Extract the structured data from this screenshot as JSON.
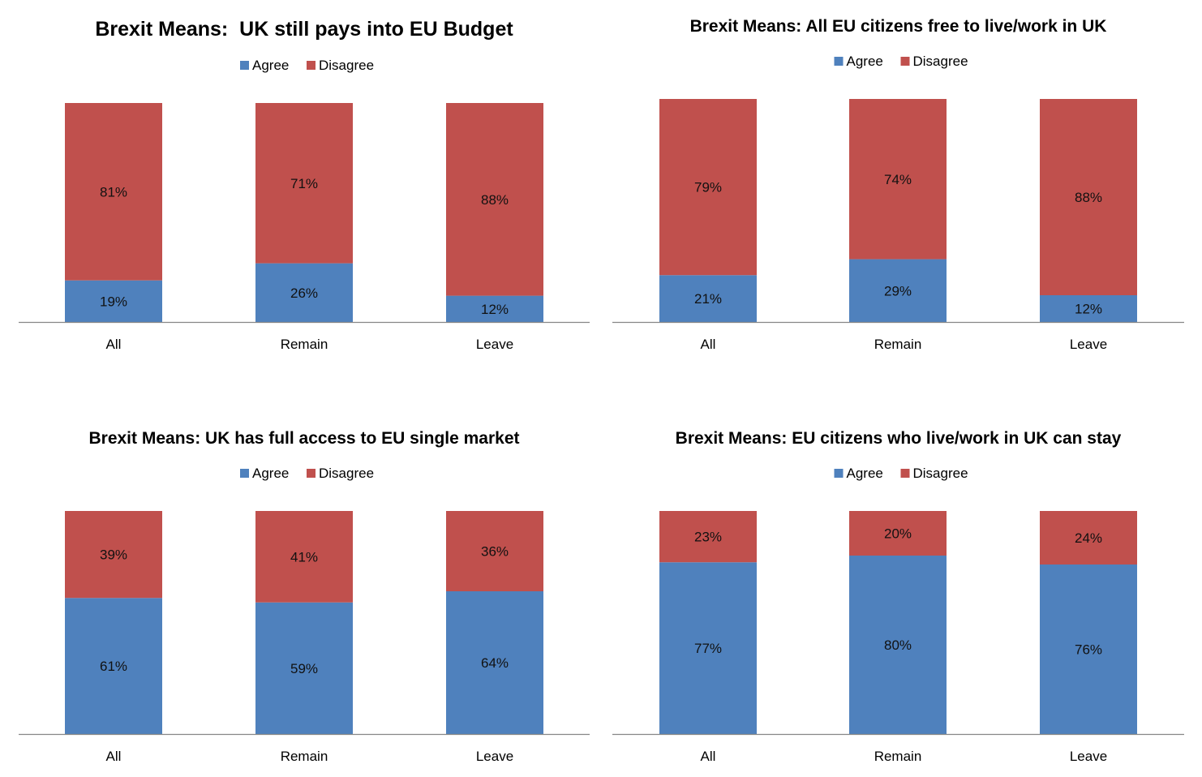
{
  "colors": {
    "agree": "#4F81BD",
    "disagree": "#C0504D",
    "axis": "#878787"
  },
  "chart_data": [
    {
      "type": "bar",
      "stacked": true,
      "title": "Brexit Means:  UK still pays into EU Budget",
      "categories": [
        "All",
        "Remain",
        "Leave"
      ],
      "series": [
        {
          "name": "Agree",
          "values": [
            19,
            26,
            12
          ],
          "labels": [
            "19%",
            "26%",
            "12%"
          ]
        },
        {
          "name": "Disagree",
          "values": [
            81,
            71,
            88
          ],
          "labels": [
            "81%",
            "71%",
            "88%"
          ]
        }
      ],
      "legend": {
        "entries": [
          "Agree",
          "Disagree"
        ],
        "placement": "top"
      },
      "xlabel": "",
      "ylabel": "",
      "ylim": [
        0,
        100
      ],
      "grid": false
    },
    {
      "type": "bar",
      "stacked": true,
      "title": "Brexit Means: All EU citizens free to live/work in UK",
      "categories": [
        "All",
        "Remain",
        "Leave"
      ],
      "series": [
        {
          "name": "Agree",
          "values": [
            21,
            29,
            12
          ],
          "labels": [
            "21%",
            "29%",
            "12%"
          ]
        },
        {
          "name": "Disagree",
          "values": [
            79,
            74,
            88
          ],
          "labels": [
            "79%",
            "74%",
            "88%"
          ]
        }
      ],
      "legend": {
        "entries": [
          "Agree",
          "Disagree"
        ],
        "placement": "top"
      },
      "xlabel": "",
      "ylabel": "",
      "ylim": [
        0,
        100
      ],
      "grid": false
    },
    {
      "type": "bar",
      "stacked": true,
      "title": "Brexit Means: UK has full access to EU single market",
      "categories": [
        "All",
        "Remain",
        "Leave"
      ],
      "series": [
        {
          "name": "Agree",
          "values": [
            61,
            59,
            64
          ],
          "labels": [
            "61%",
            "59%",
            "64%"
          ]
        },
        {
          "name": "Disagree",
          "values": [
            39,
            41,
            36
          ],
          "labels": [
            "39%",
            "41%",
            "36%"
          ]
        }
      ],
      "legend": {
        "entries": [
          "Agree",
          "Disagree"
        ],
        "placement": "top"
      },
      "xlabel": "",
      "ylabel": "",
      "ylim": [
        0,
        100
      ],
      "grid": false
    },
    {
      "type": "bar",
      "stacked": true,
      "title": "Brexit Means: EU citizens who live/work in UK can stay",
      "categories": [
        "All",
        "Remain",
        "Leave"
      ],
      "series": [
        {
          "name": "Agree",
          "values": [
            77,
            80,
            76
          ],
          "labels": [
            "77%",
            "80%",
            "76%"
          ]
        },
        {
          "name": "Disagree",
          "values": [
            23,
            20,
            24
          ],
          "labels": [
            "23%",
            "20%",
            "24%"
          ]
        }
      ],
      "legend": {
        "entries": [
          "Agree",
          "Disagree"
        ],
        "placement": "top"
      },
      "xlabel": "",
      "ylabel": "",
      "ylim": [
        0,
        100
      ],
      "grid": false
    }
  ]
}
